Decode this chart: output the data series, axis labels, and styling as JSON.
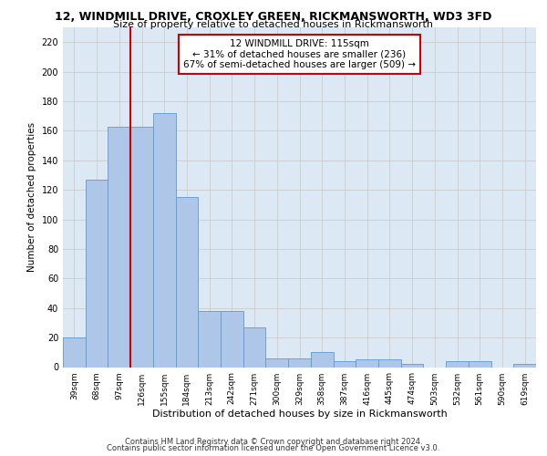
{
  "title": "12, WINDMILL DRIVE, CROXLEY GREEN, RICKMANSWORTH, WD3 3FD",
  "subtitle": "Size of property relative to detached houses in Rickmansworth",
  "xlabel": "Distribution of detached houses by size in Rickmansworth",
  "ylabel": "Number of detached properties",
  "categories": [
    "39sqm",
    "68sqm",
    "97sqm",
    "126sqm",
    "155sqm",
    "184sqm",
    "213sqm",
    "242sqm",
    "271sqm",
    "300sqm",
    "329sqm",
    "358sqm",
    "387sqm",
    "416sqm",
    "445sqm",
    "474sqm",
    "503sqm",
    "532sqm",
    "561sqm",
    "590sqm",
    "619sqm"
  ],
  "values": [
    20,
    127,
    163,
    163,
    172,
    115,
    38,
    38,
    27,
    6,
    6,
    10,
    4,
    5,
    5,
    2,
    0,
    4,
    4,
    0,
    2
  ],
  "bar_color": "#aec6e8",
  "bar_edge_color": "#5b9bd5",
  "vline_x": 2.5,
  "vline_color": "#cc0000",
  "annotation_text": "12 WINDMILL DRIVE: 115sqm\n← 31% of detached houses are smaller (236)\n67% of semi-detached houses are larger (509) →",
  "annotation_box_color": "#ffffff",
  "annotation_box_edge": "#cc0000",
  "ylim": [
    0,
    230
  ],
  "yticks": [
    0,
    20,
    40,
    60,
    80,
    100,
    120,
    140,
    160,
    180,
    200,
    220
  ],
  "grid_color": "#cccccc",
  "bg_color": "#dce9f5",
  "footer1": "Contains HM Land Registry data © Crown copyright and database right 2024.",
  "footer2": "Contains public sector information licensed under the Open Government Licence v3.0."
}
